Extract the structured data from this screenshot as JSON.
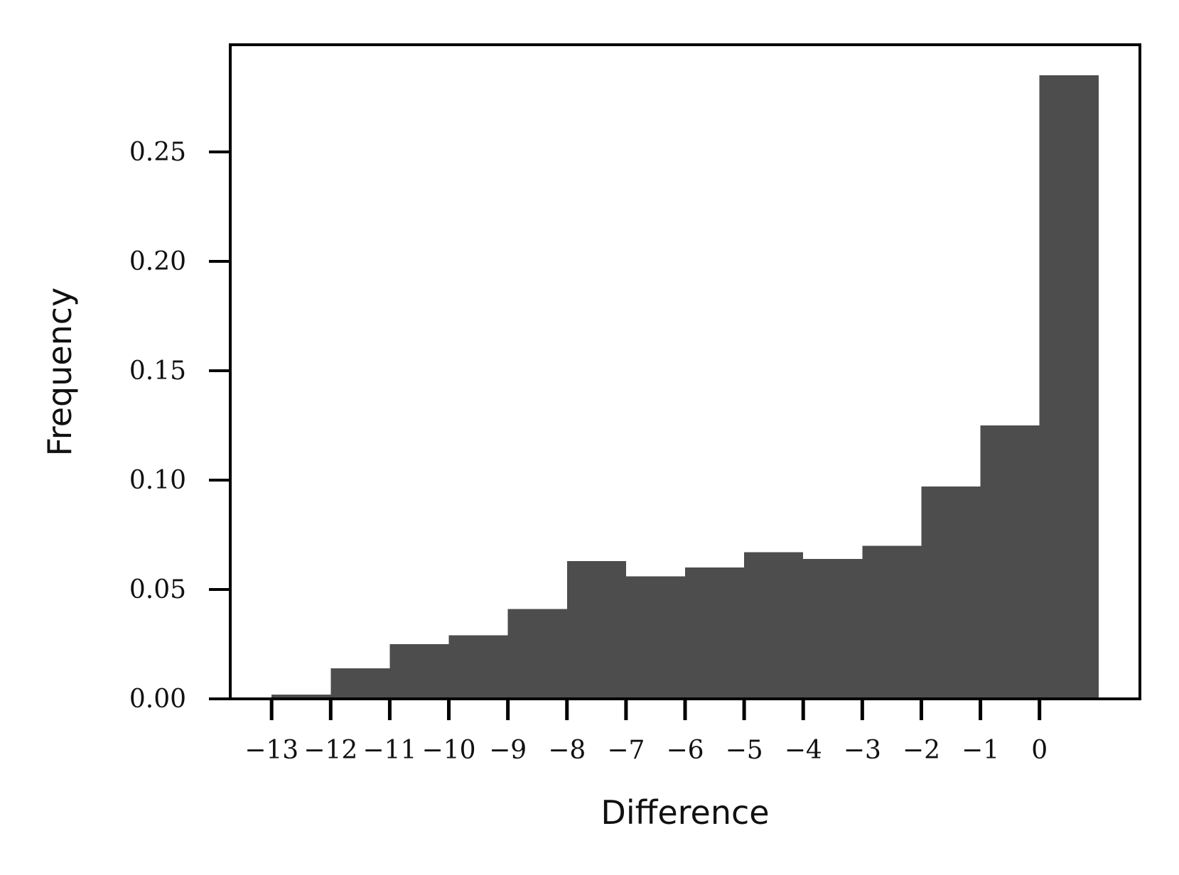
{
  "chart_data": {
    "type": "bar",
    "title": "",
    "xlabel": "Difference",
    "ylabel": "Frequency",
    "bar_color": "#4d4d4d",
    "bins": [
      {
        "left": -13.0,
        "right": -12.0,
        "value": 0.002
      },
      {
        "left": -12.0,
        "right": -11.0,
        "value": 0.014
      },
      {
        "left": -11.0,
        "right": -10.0,
        "value": 0.025
      },
      {
        "left": -10.0,
        "right": -9.0,
        "value": 0.029
      },
      {
        "left": -9.0,
        "right": -8.0,
        "value": 0.041
      },
      {
        "left": -8.0,
        "right": -7.0,
        "value": 0.063
      },
      {
        "left": -7.0,
        "right": -6.0,
        "value": 0.056
      },
      {
        "left": -6.0,
        "right": -5.0,
        "value": 0.06
      },
      {
        "left": -5.0,
        "right": -4.0,
        "value": 0.067
      },
      {
        "left": -4.0,
        "right": -3.0,
        "value": 0.064
      },
      {
        "left": -3.0,
        "right": -2.0,
        "value": 0.07
      },
      {
        "left": -2.0,
        "right": -1.0,
        "value": 0.097
      },
      {
        "left": -1.0,
        "right": 0.0,
        "value": 0.125
      },
      {
        "left": 0.0,
        "right": 1.0,
        "value": 0.285
      }
    ],
    "x_ticks": [
      -13,
      -12,
      -11,
      -10,
      -9,
      -8,
      -7,
      -6,
      -5,
      -4,
      -3,
      -2,
      -1,
      0
    ],
    "x_tick_labels": [
      "−13",
      "−12",
      "−11",
      "−10",
      "−9",
      "−8",
      "−7",
      "−6",
      "−5",
      "−4",
      "−3",
      "−2",
      "−1",
      "0"
    ],
    "y_ticks": [
      0.0,
      0.05,
      0.1,
      0.15,
      0.2,
      0.25
    ],
    "y_tick_labels": [
      "0.00",
      "0.05",
      "0.10",
      "0.15",
      "0.20",
      "0.25"
    ],
    "xlim": [
      -13.7,
      1.7
    ],
    "ylim": [
      0,
      0.299
    ],
    "grid": false,
    "legend": "none"
  }
}
